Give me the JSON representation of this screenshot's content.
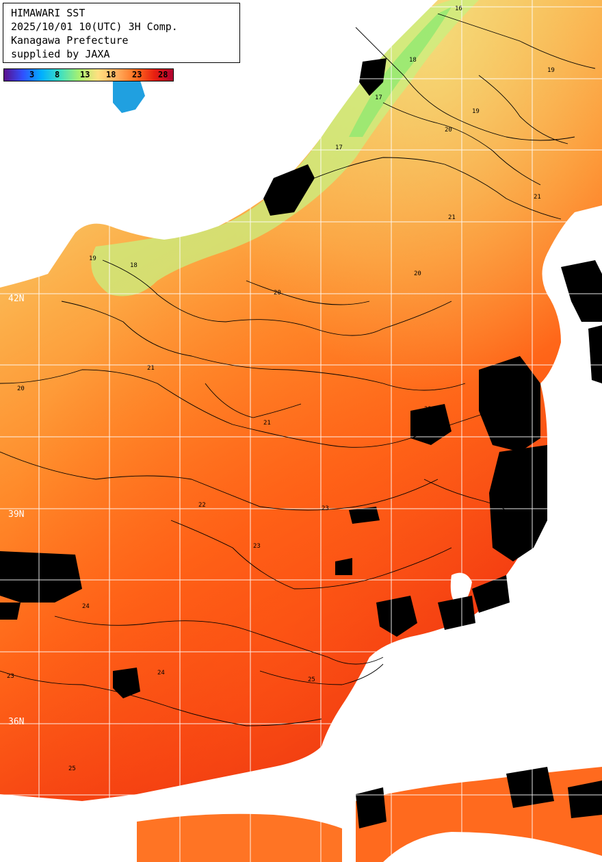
{
  "title_box": {
    "line1": "HIMAWARI SST",
    "line2": "2025/10/01 10(UTC) 3H Comp.",
    "line3": "Kanagawa Prefecture",
    "line4": "supplied by JAXA"
  },
  "colorbar": {
    "ticks": [
      "3",
      "8",
      "13",
      "18",
      "23",
      "28"
    ],
    "gradient": [
      "#5a0f8c",
      "#3050ff",
      "#00b0ff",
      "#40e0c0",
      "#a8f070",
      "#ffe080",
      "#ffb060",
      "#ff7020",
      "#e82010",
      "#b00030"
    ]
  },
  "latitude_labels": [
    "42N",
    "39N",
    "36N"
  ],
  "isotherm_labels": [
    "16",
    "17",
    "17",
    "18",
    "18",
    "19",
    "19",
    "19",
    "20",
    "20",
    "20",
    "20",
    "21",
    "21",
    "21",
    "21",
    "22",
    "22",
    "22",
    "23",
    "23",
    "23",
    "24",
    "24",
    "25",
    "25"
  ],
  "colors": {
    "land": "#ffffff",
    "no_data": "#000000",
    "grid": "#ffffff",
    "isotherm": "#000000",
    "sst_cool": "#e8f090",
    "sst_mid": "#ffa040",
    "sst_warm": "#ff5010",
    "sst_hot": "#e01810"
  }
}
